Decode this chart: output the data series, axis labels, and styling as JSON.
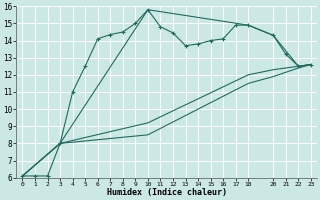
{
  "title": "",
  "xlabel": "Humidex (Indice chaleur)",
  "bg_color": "#cce8e4",
  "grid_color": "#ffffff",
  "line_color": "#1e6b5e",
  "xlim": [
    -0.5,
    23.5
  ],
  "ylim": [
    6,
    16
  ],
  "xticks": [
    0,
    1,
    2,
    3,
    4,
    5,
    6,
    7,
    8,
    9,
    10,
    11,
    12,
    13,
    14,
    15,
    16,
    17,
    18,
    20,
    21,
    22,
    23
  ],
  "yticks": [
    6,
    7,
    8,
    9,
    10,
    11,
    12,
    13,
    14,
    15,
    16
  ],
  "line1_x": [
    0,
    1,
    2,
    3,
    4,
    5,
    6,
    7,
    8,
    9,
    10,
    11,
    12,
    13,
    14,
    15,
    16,
    17,
    18,
    20,
    21,
    22,
    23
  ],
  "line1_y": [
    6.1,
    6.1,
    6.1,
    8.0,
    11.0,
    12.5,
    14.1,
    14.35,
    14.5,
    15.0,
    15.8,
    14.8,
    14.45,
    13.7,
    13.8,
    14.0,
    14.1,
    14.9,
    14.9,
    14.3,
    13.2,
    12.5,
    12.6
  ],
  "line2_x": [
    0,
    3,
    10,
    18,
    20,
    22,
    23
  ],
  "line2_y": [
    6.1,
    8.0,
    15.8,
    14.9,
    14.3,
    12.5,
    12.6
  ],
  "line3_x": [
    0,
    3,
    10,
    18,
    20,
    22,
    23
  ],
  "line3_y": [
    6.1,
    8.0,
    9.2,
    12.0,
    12.3,
    12.5,
    12.6
  ],
  "line4_x": [
    0,
    3,
    10,
    18,
    20,
    22,
    23
  ],
  "line4_y": [
    6.1,
    8.0,
    8.5,
    11.5,
    11.9,
    12.4,
    12.6
  ]
}
